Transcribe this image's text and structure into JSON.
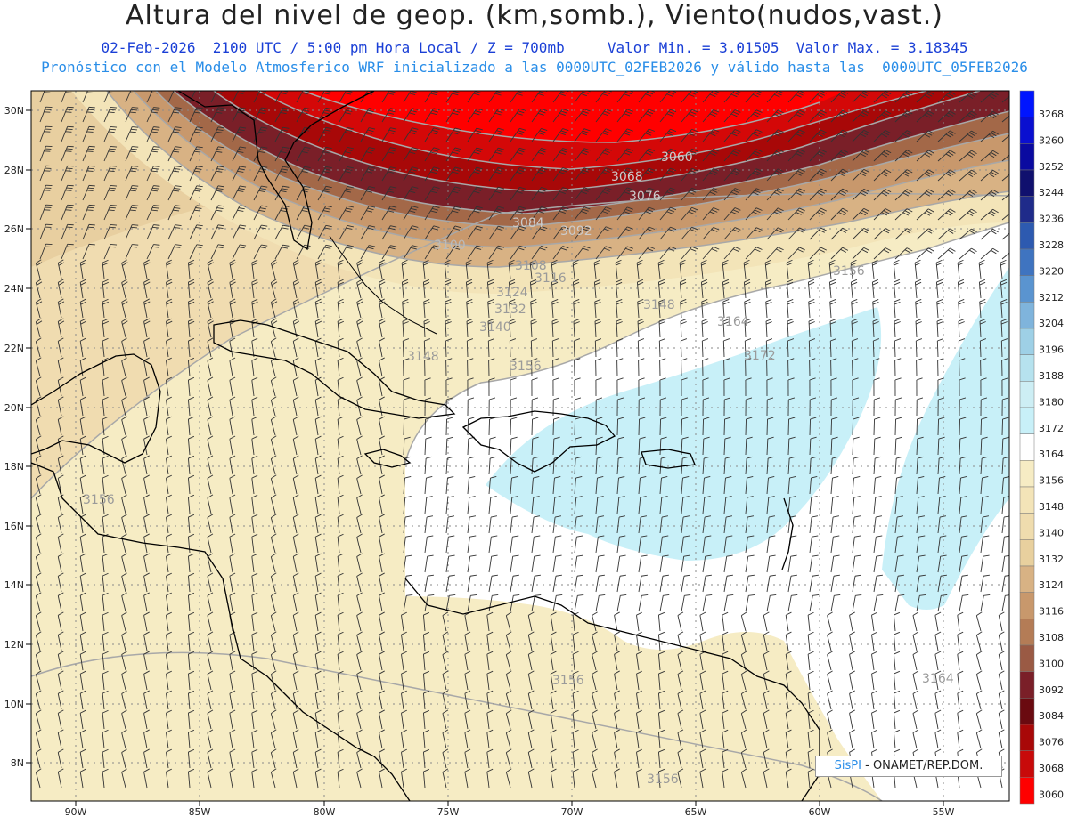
{
  "header": {
    "title": "Altura del nivel de geop. (km,somb.), Viento(nudos,vast.)",
    "line1": "02-Feb-2026  2100 UTC / 5:00 pm Hora Local / Z = 700mb     Valor Min. = 3.01505  Valor Max. = 3.18345",
    "line2": "Pronóstico con el Modelo Atmosferico WRF inicializado a las 0000UTC_02FEB2026 y válido hasta las  0000UTC_05FEB2026"
  },
  "credit": {
    "brand": "SisPI",
    "org": " - ONAMET/REP.DOM."
  },
  "axes": {
    "lat_labels": [
      "30N",
      "28N",
      "26N",
      "24N",
      "22N",
      "20N",
      "18N",
      "16N",
      "14N",
      "12N",
      "10N",
      "8N"
    ],
    "lon_labels": [
      "90W",
      "85W",
      "80W",
      "75W",
      "70W",
      "65W",
      "60W",
      "55W"
    ]
  },
  "colorbar": {
    "levels": [
      "3268",
      "3260",
      "3252",
      "3244",
      "3236",
      "3228",
      "3220",
      "3212",
      "3204",
      "3196",
      "3188",
      "3180",
      "3172",
      "3164",
      "3156",
      "3148",
      "3140",
      "3132",
      "3124",
      "3116",
      "3108",
      "3100",
      "3092",
      "3084",
      "3076",
      "3068",
      "3060"
    ],
    "colors": [
      "#0015ff",
      "#0a0fd0",
      "#0a0aa0",
      "#10106e",
      "#1f2b8a",
      "#2d5ab0",
      "#3f74c0",
      "#5a94d0",
      "#7fb4dc",
      "#9ed0e6",
      "#b6e2ee",
      "#cdeef4",
      "#c8f0f8",
      "#ffffff",
      "#f6ecc4",
      "#f3e4b8",
      "#efdcae",
      "#e8d09e",
      "#d8b284",
      "#c8986c",
      "#b47c56",
      "#9a5a44",
      "#7a1f28",
      "#6a0a10",
      "#a80808",
      "#c80a0a",
      "#ff0000"
    ]
  },
  "contours": {
    "labels": [
      "3060",
      "3068",
      "3076",
      "3084",
      "3092",
      "3100",
      "3108",
      "3116",
      "3124",
      "3132",
      "3140",
      "3148",
      "3156",
      "3164",
      "3172",
      "3156",
      "3148",
      "3156",
      "3164",
      "3156",
      "3156"
    ]
  },
  "colors": {
    "base": "#f6ecc4",
    "white_zone": "#ffffff",
    "cyan_zone": "#c8f0f8",
    "contour_line": "#a8a8a8",
    "coast": "#000000"
  }
}
